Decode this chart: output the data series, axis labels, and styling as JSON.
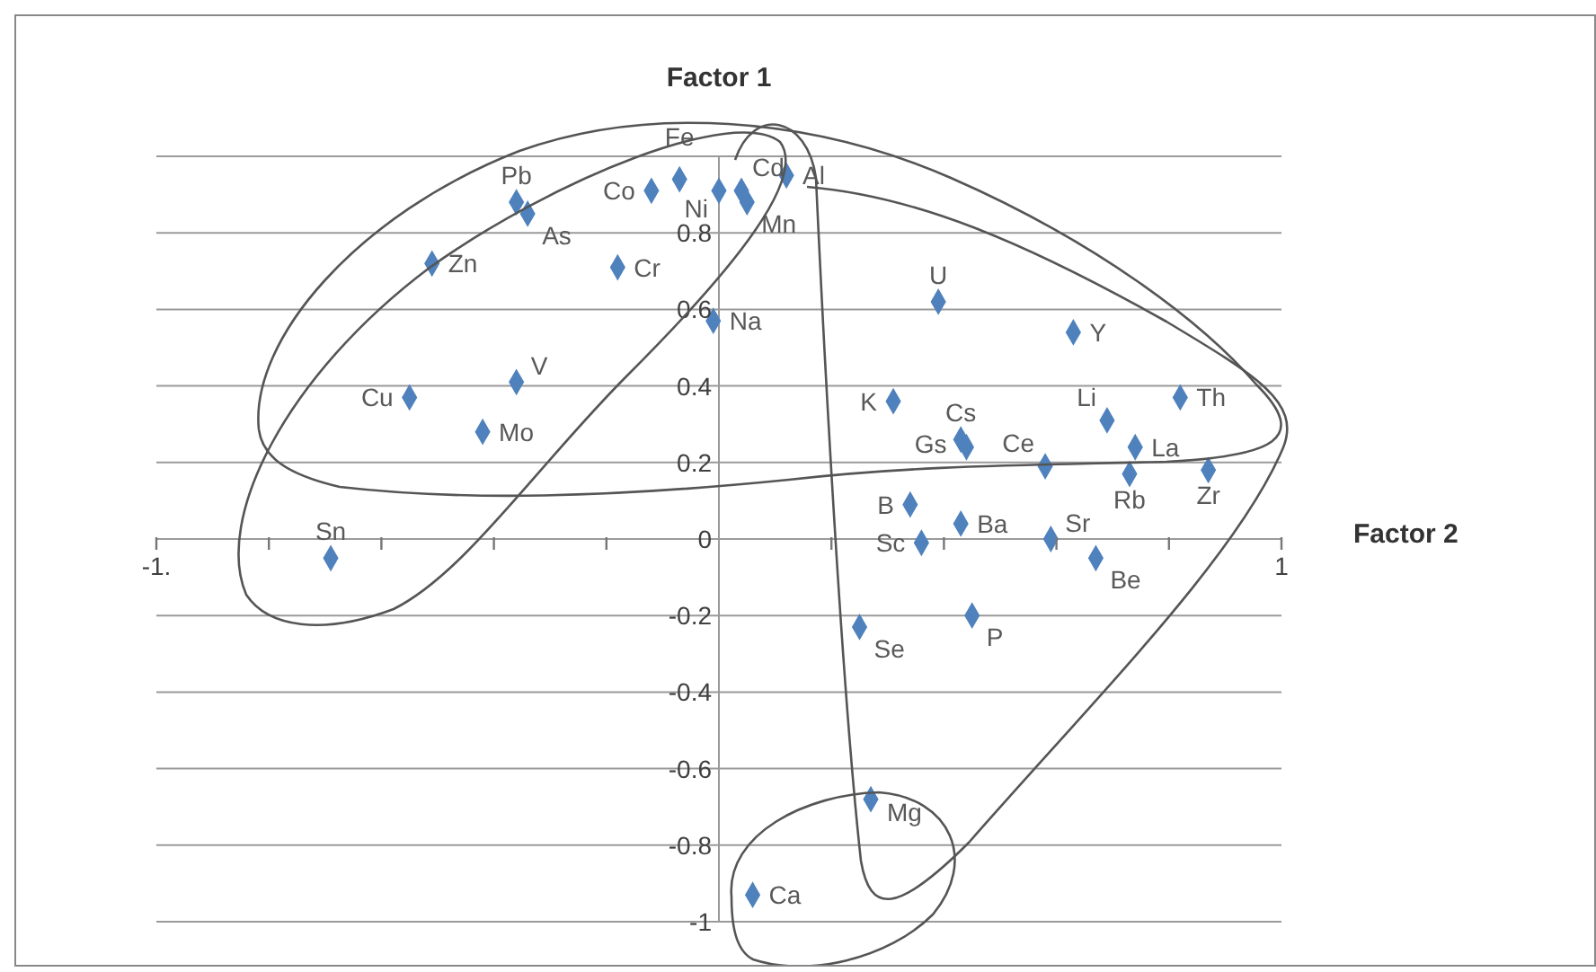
{
  "chart_data": {
    "type": "scatter",
    "xlabel": "Factor 2",
    "ylabel": "Factor 1",
    "xlim": [
      -1,
      1
    ],
    "xticks": [
      {
        "value": -1,
        "label": "-1."
      },
      {
        "value": -0.8,
        "label": null
      },
      {
        "value": -0.6,
        "label": null
      },
      {
        "value": -0.4,
        "label": null
      },
      {
        "value": -0.2,
        "label": null
      },
      {
        "value": 0.2,
        "label": null
      },
      {
        "value": 0.4,
        "label": null
      },
      {
        "value": 0.6,
        "label": null
      },
      {
        "value": 0.8,
        "label": null
      },
      1
    ],
    "ylim": [
      -1,
      1
    ],
    "yticks": [
      -1,
      -0.8,
      -0.6,
      -0.4,
      -0.2,
      0,
      0.2,
      0.4,
      0.6,
      0.8,
      {
        "value": 1,
        "label": null
      }
    ],
    "grid": "y",
    "legend": false,
    "marker": "diamond",
    "series": [
      {
        "name": "Pb",
        "color": "#4f81bd",
        "x": [
          -0.36
        ],
        "values": [
          0.88
        ]
      },
      {
        "name": "As",
        "color": "#4f81bd",
        "x": [
          -0.34
        ],
        "values": [
          0.85
        ]
      },
      {
        "name": "Co",
        "color": "#4f81bd",
        "x": [
          -0.12
        ],
        "values": [
          0.91
        ]
      },
      {
        "name": "Fe",
        "color": "#4f81bd",
        "x": [
          -0.07
        ],
        "values": [
          0.94
        ]
      },
      {
        "name": "Ni",
        "color": "#4f81bd",
        "x": [
          0.0
        ],
        "values": [
          0.91
        ]
      },
      {
        "name": "Cd",
        "color": "#4f81bd",
        "x": [
          0.04
        ],
        "values": [
          0.91
        ]
      },
      {
        "name": "Mn",
        "color": "#4f81bd",
        "x": [
          0.05
        ],
        "values": [
          0.88
        ]
      },
      {
        "name": "Al",
        "color": "#4f81bd",
        "x": [
          0.12
        ],
        "values": [
          0.95
        ]
      },
      {
        "name": "Zn",
        "color": "#4f81bd",
        "x": [
          -0.51
        ],
        "values": [
          0.72
        ]
      },
      {
        "name": "Cr",
        "color": "#4f81bd",
        "x": [
          -0.18
        ],
        "values": [
          0.71
        ]
      },
      {
        "name": "Na",
        "color": "#4f81bd",
        "x": [
          -0.01
        ],
        "values": [
          0.57
        ]
      },
      {
        "name": "V",
        "color": "#4f81bd",
        "x": [
          -0.36
        ],
        "values": [
          0.41
        ]
      },
      {
        "name": "Cu",
        "color": "#4f81bd",
        "x": [
          -0.55
        ],
        "values": [
          0.37
        ]
      },
      {
        "name": "Mo",
        "color": "#4f81bd",
        "x": [
          -0.42
        ],
        "values": [
          0.28
        ]
      },
      {
        "name": "Sn",
        "color": "#4f81bd",
        "x": [
          -0.69
        ],
        "values": [
          -0.05
        ]
      },
      {
        "name": "U",
        "color": "#4f81bd",
        "x": [
          0.39
        ],
        "values": [
          0.62
        ]
      },
      {
        "name": "Y",
        "color": "#4f81bd",
        "x": [
          0.63
        ],
        "values": [
          0.54
        ]
      },
      {
        "name": "K",
        "color": "#4f81bd",
        "x": [
          0.31
        ],
        "values": [
          0.36
        ]
      },
      {
        "name": "Cs",
        "color": "#4f81bd",
        "x": [
          0.43
        ],
        "values": [
          0.26
        ]
      },
      {
        "name": "Gs",
        "color": "#4f81bd",
        "x": [
          0.44
        ],
        "values": [
          0.24
        ]
      },
      {
        "name": "Li",
        "color": "#4f81bd",
        "x": [
          0.69
        ],
        "values": [
          0.31
        ]
      },
      {
        "name": "Th",
        "color": "#4f81bd",
        "x": [
          0.82
        ],
        "values": [
          0.37
        ]
      },
      {
        "name": "La",
        "color": "#4f81bd",
        "x": [
          0.74
        ],
        "values": [
          0.24
        ]
      },
      {
        "name": "Ce",
        "color": "#4f81bd",
        "x": [
          0.58
        ],
        "values": [
          0.19
        ]
      },
      {
        "name": "Rb",
        "color": "#4f81bd",
        "x": [
          0.73
        ],
        "values": [
          0.17
        ]
      },
      {
        "name": "Zr",
        "color": "#4f81bd",
        "x": [
          0.87
        ],
        "values": [
          0.18
        ]
      },
      {
        "name": "B",
        "color": "#4f81bd",
        "x": [
          0.34
        ],
        "values": [
          0.09
        ]
      },
      {
        "name": "Ba",
        "color": "#4f81bd",
        "x": [
          0.43
        ],
        "values": [
          0.04
        ]
      },
      {
        "name": "Sc",
        "color": "#4f81bd",
        "x": [
          0.36
        ],
        "values": [
          -0.01
        ]
      },
      {
        "name": "Sr",
        "color": "#4f81bd",
        "x": [
          0.59
        ],
        "values": [
          0.0
        ]
      },
      {
        "name": "Be",
        "color": "#4f81bd",
        "x": [
          0.67
        ],
        "values": [
          -0.05
        ]
      },
      {
        "name": "Se",
        "color": "#4f81bd",
        "x": [
          0.25
        ],
        "values": [
          -0.23
        ]
      },
      {
        "name": "P",
        "color": "#4f81bd",
        "x": [
          0.45
        ],
        "values": [
          -0.2
        ]
      },
      {
        "name": "Mg",
        "color": "#4f81bd",
        "x": [
          0.27
        ],
        "values": [
          -0.68
        ]
      },
      {
        "name": "Ca",
        "color": "#4f81bd",
        "x": [
          0.06
        ],
        "values": [
          -0.93
        ]
      }
    ]
  }
}
